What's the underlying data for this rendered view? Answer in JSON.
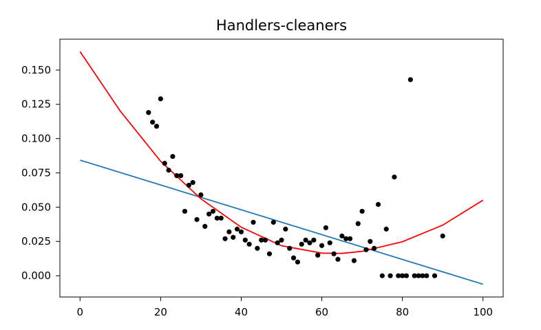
{
  "chart_data": {
    "type": "scatter",
    "title": "Handlers-cleaners",
    "xlabel": "",
    "ylabel": "",
    "xlim": [
      -5,
      105
    ],
    "ylim": [
      -0.0155,
      0.1725
    ],
    "x_ticks": [
      0,
      20,
      40,
      60,
      80,
      100
    ],
    "y_ticks": [
      0.0,
      0.025,
      0.05,
      0.075,
      0.1,
      0.125,
      0.15
    ],
    "x_tick_labels": [
      "0",
      "20",
      "40",
      "60",
      "80",
      "100"
    ],
    "y_tick_labels": [
      "0.000",
      "0.025",
      "0.050",
      "0.075",
      "0.100",
      "0.125",
      "0.150"
    ],
    "grid": false,
    "points": {
      "color": "#000000",
      "x": [
        17,
        18,
        19,
        20,
        21,
        22,
        23,
        24,
        25,
        26,
        27,
        28,
        29,
        30,
        31,
        32,
        33,
        34,
        35,
        36,
        37,
        38,
        39,
        40,
        41,
        42,
        43,
        44,
        45,
        46,
        47,
        48,
        49,
        50,
        51,
        52,
        53,
        54,
        55,
        56,
        57,
        58,
        59,
        60,
        61,
        62,
        63,
        64,
        65,
        66,
        67,
        68,
        69,
        70,
        71,
        72,
        73,
        74,
        75,
        76,
        77,
        78,
        79,
        80,
        81,
        82,
        83,
        84,
        85,
        86,
        88,
        90
      ],
      "y": [
        0.119,
        0.112,
        0.109,
        0.129,
        0.082,
        0.077,
        0.087,
        0.073,
        0.073,
        0.047,
        0.066,
        0.068,
        0.041,
        0.059,
        0.036,
        0.045,
        0.047,
        0.042,
        0.042,
        0.027,
        0.032,
        0.028,
        0.034,
        0.032,
        0.026,
        0.023,
        0.039,
        0.02,
        0.026,
        0.026,
        0.016,
        0.039,
        0.024,
        0.026,
        0.034,
        0.02,
        0.013,
        0.01,
        0.023,
        0.026,
        0.024,
        0.026,
        0.015,
        0.022,
        0.035,
        0.024,
        0.016,
        0.012,
        0.029,
        0.027,
        0.027,
        0.011,
        0.038,
        0.047,
        0.019,
        0.025,
        0.02,
        0.052,
        0.0,
        0.034,
        0.0,
        0.072,
        0.0,
        0.0,
        0.0,
        0.143,
        0.0,
        0.0,
        0.0,
        0.0,
        0.0,
        0.029
      ]
    },
    "series": [
      {
        "type": "line",
        "color": "#1f77b4",
        "x": [
          0,
          100
        ],
        "y": [
          0.0843,
          -0.0062
        ]
      },
      {
        "type": "curve",
        "color": "#ff0000",
        "x": [
          0,
          10,
          20,
          30,
          40,
          50,
          60,
          65,
          70,
          80,
          90,
          100
        ],
        "y": [
          0.1635,
          0.12,
          0.0835,
          0.0561,
          0.0354,
          0.0219,
          0.0165,
          0.0163,
          0.0178,
          0.0248,
          0.0369,
          0.0551
        ]
      }
    ]
  }
}
